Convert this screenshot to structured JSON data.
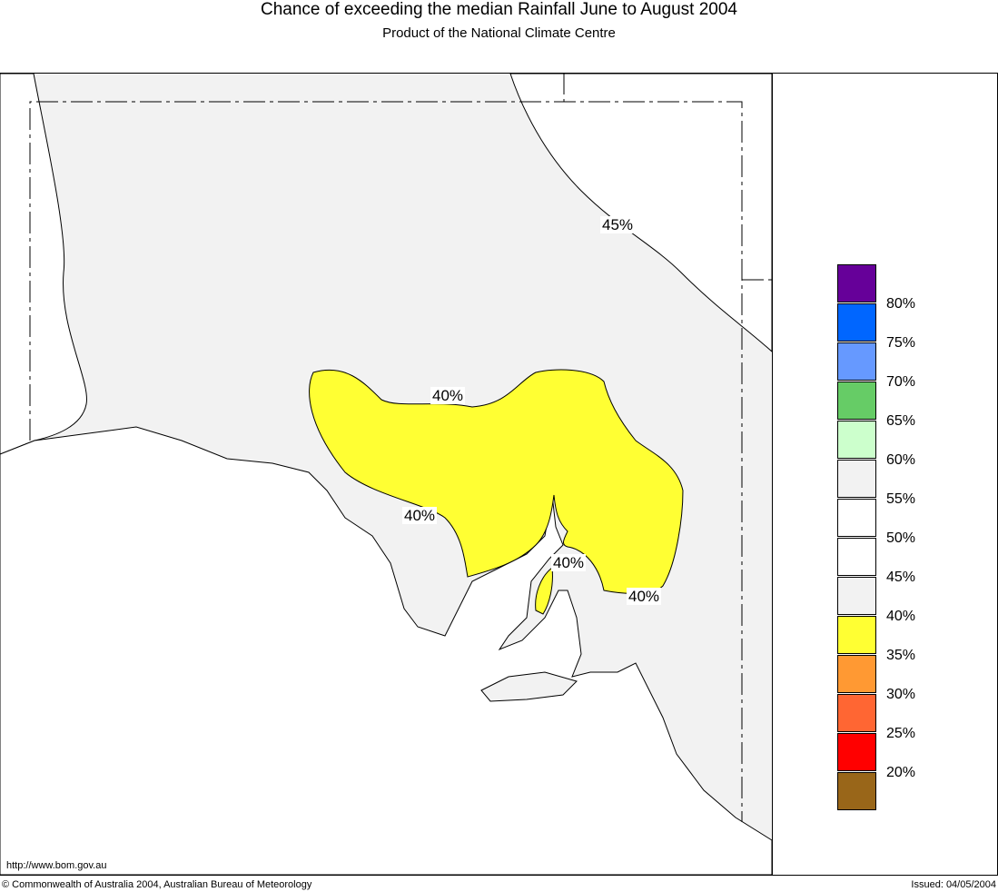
{
  "title": "Chance of exceeding the median Rainfall June to August 2004",
  "subtitle": "Product of the National Climate Centre",
  "contour_labels": [
    "45%",
    "40%",
    "40%",
    "40%",
    "40%"
  ],
  "legend": {
    "colors": [
      "#660099",
      "#0066ff",
      "#6699ff",
      "#66cc66",
      "#ccffcc",
      "#f2f2f2",
      "#ffffff",
      "#ffffff",
      "#f2f2f2",
      "#ffff33",
      "#ff9933",
      "#ff6633",
      "#ff0000",
      "#996619"
    ],
    "labels": [
      "80%",
      "75%",
      "70%",
      "65%",
      "60%",
      "55%",
      "50%",
      "45%",
      "40%",
      "35%",
      "30%",
      "25%",
      "20%"
    ]
  },
  "url": "http://www.bom.gov.au",
  "copyright": "© Commonwealth of Australia 2004, Australian Bureau of Meteorology",
  "issued": "Issued: 04/05/2004"
}
